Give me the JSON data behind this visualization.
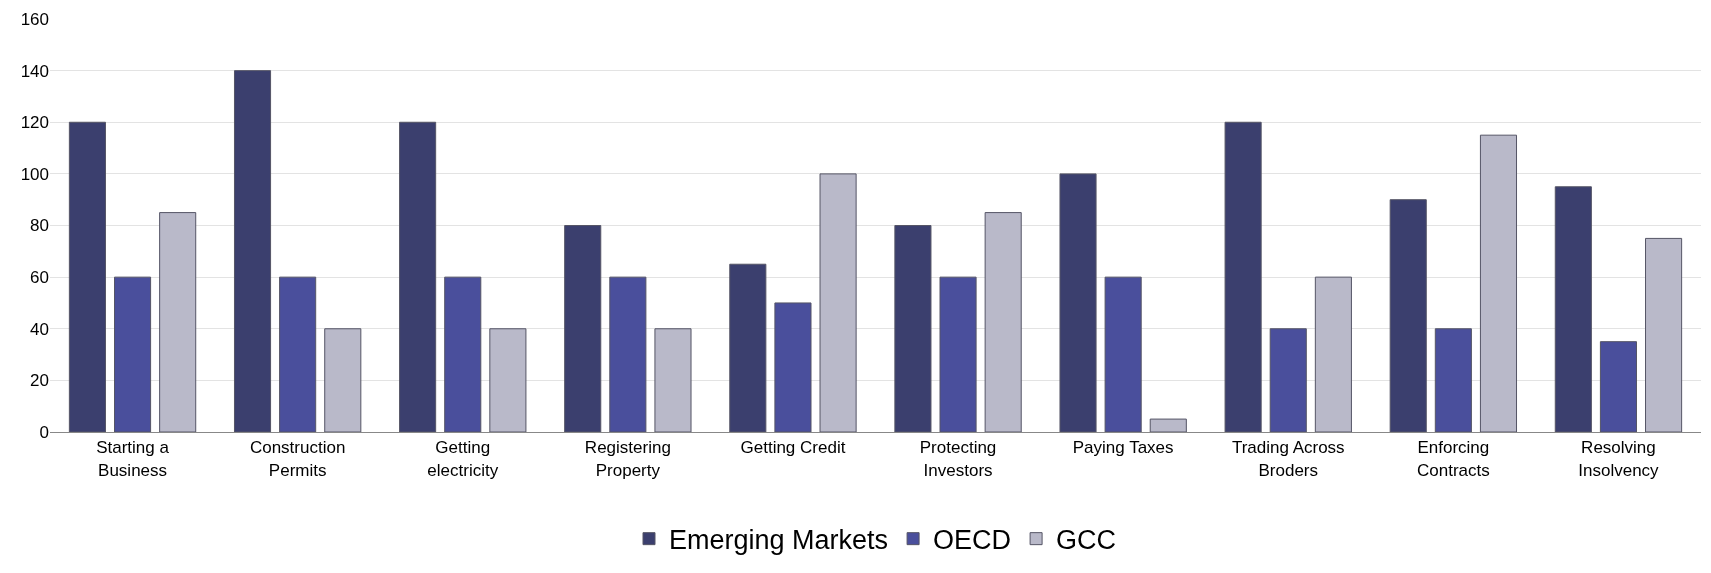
{
  "chart_data": {
    "type": "bar",
    "categories": [
      "Starting a Business",
      "Construction Permits",
      "Getting electricity",
      "Registering Property",
      "Getting Credit",
      "Protecting Investors",
      "Paying Taxes",
      "Trading Across Broders",
      "Enforcing Contracts",
      "Resolving Insolvency"
    ],
    "series": [
      {
        "name": "Emerging Markets",
        "color": "#3b3f6e",
        "values": [
          120,
          140,
          120,
          80,
          65,
          80,
          100,
          120,
          90,
          95
        ]
      },
      {
        "name": "OECD",
        "color": "#4a4f9c",
        "values": [
          60,
          60,
          60,
          60,
          50,
          60,
          60,
          40,
          40,
          35
        ]
      },
      {
        "name": "GCC",
        "color": "#b9b9c9",
        "values": [
          85,
          40,
          40,
          40,
          100,
          85,
          5,
          60,
          115,
          75
        ]
      }
    ],
    "ylim": [
      0,
      160
    ],
    "yticks": [
      0,
      20,
      40,
      60,
      80,
      100,
      120,
      140,
      160
    ],
    "grid": "y",
    "legend": "bottom"
  }
}
